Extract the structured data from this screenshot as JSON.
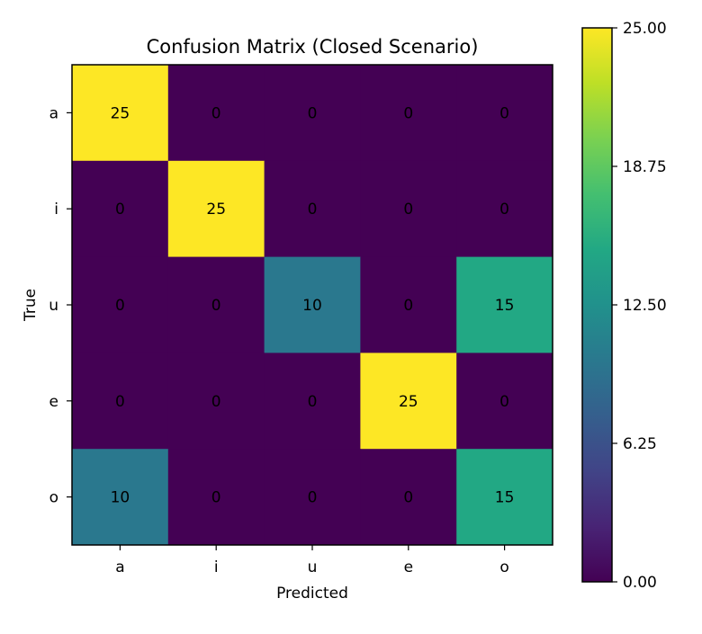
{
  "chart_data": {
    "type": "heatmap",
    "title": "Confusion Matrix (Closed Scenario)",
    "xlabel": "Predicted",
    "ylabel": "True",
    "x_categories": [
      "a",
      "i",
      "u",
      "e",
      "o"
    ],
    "y_categories": [
      "a",
      "i",
      "u",
      "e",
      "o"
    ],
    "values": [
      [
        25,
        0,
        0,
        0,
        0
      ],
      [
        0,
        25,
        0,
        0,
        0
      ],
      [
        0,
        0,
        10,
        0,
        15
      ],
      [
        0,
        0,
        0,
        25,
        0
      ],
      [
        10,
        0,
        0,
        0,
        15
      ]
    ],
    "colorbar": {
      "colormap": "viridis",
      "range": [
        0,
        25
      ],
      "ticks": [
        0,
        6.25,
        12.5,
        18.75,
        25
      ],
      "tick_labels": [
        "0.00",
        "6.25",
        "12.50",
        "18.75",
        "25.00"
      ]
    },
    "grid": false
  }
}
